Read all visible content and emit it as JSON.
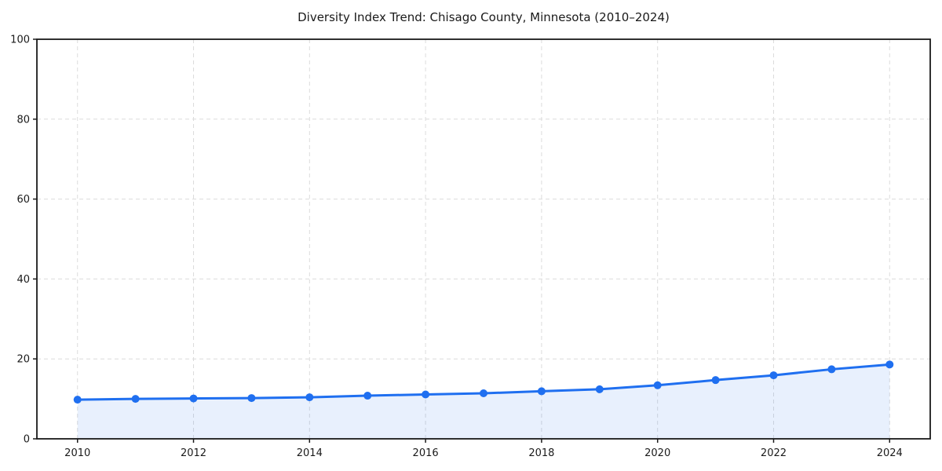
{
  "chart_data": {
    "type": "area",
    "title": "Diversity Index Trend: Chisago County, Minnesota (2010–2024)",
    "xlabel": "",
    "ylabel": "",
    "x": [
      2010,
      2011,
      2012,
      2013,
      2014,
      2015,
      2016,
      2017,
      2018,
      2019,
      2020,
      2021,
      2022,
      2023,
      2024
    ],
    "series": [
      {
        "name": "Diversity Index",
        "values": [
          9.8,
          10.0,
          10.1,
          10.2,
          10.4,
          10.8,
          11.1,
          11.4,
          11.9,
          12.4,
          13.4,
          14.7,
          15.9,
          17.4,
          18.6
        ]
      }
    ],
    "xlim": [
      2009.3,
      2024.7
    ],
    "ylim": [
      0,
      100
    ],
    "xticks": [
      2010,
      2012,
      2014,
      2016,
      2018,
      2020,
      2022,
      2024
    ],
    "yticks": [
      0,
      20,
      40,
      60,
      80,
      100
    ],
    "grid": "dashed",
    "legend": "none",
    "colors": {
      "line": "#1f6ff0",
      "marker": "#1f6ff0",
      "fill": "#1f6ff0",
      "fill_opacity": "0.10",
      "grid": "#dcdcdc",
      "spine": "#1a1a1a",
      "text": "#1a1a1a",
      "background": "#ffffff"
    }
  }
}
